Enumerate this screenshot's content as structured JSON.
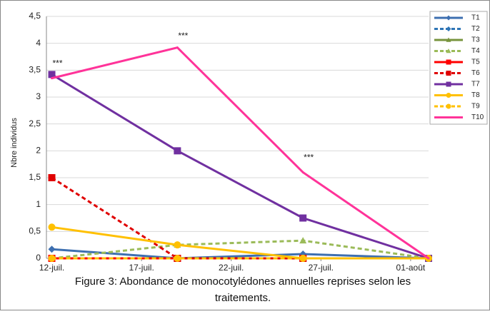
{
  "chart_data": {
    "type": "line",
    "y_label": "Nbre individus",
    "caption": [
      "Figure 3: Abondance de monocotylédones annuelles reprises  selon les",
      "traitements."
    ],
    "annotations": [
      "***",
      "***",
      "***"
    ],
    "x": [
      12,
      19,
      26,
      33
    ],
    "xlim": [
      11.7,
      33
    ],
    "xticks": [
      {
        "value": 12,
        "label": "12-juil."
      },
      {
        "value": 17,
        "label": "17-juil."
      },
      {
        "value": 22,
        "label": "22-juil."
      },
      {
        "value": 27,
        "label": "27-juil."
      },
      {
        "value": 32,
        "label": "01-août"
      }
    ],
    "ylim": [
      0,
      4.5
    ],
    "yticks": [
      0,
      {
        "value": 0.5,
        "label": "0,5"
      },
      1,
      {
        "value": 1.5,
        "label": "1,5"
      },
      2,
      {
        "value": 2.5,
        "label": "2,5"
      },
      3,
      {
        "value": 3.5,
        "label": "3,5"
      },
      4,
      {
        "value": 4.5,
        "label": "4,5"
      }
    ],
    "grid": true,
    "legend": "right",
    "series": [
      {
        "name": "T1",
        "color": "#3d6fb0",
        "dash": false,
        "marker": "diamond",
        "values": [
          0.17,
          0,
          0.08,
          0
        ]
      },
      {
        "name": "T2",
        "color": "#2e75b6",
        "dash": true,
        "marker": "diamond",
        "values": [
          0,
          0,
          0,
          0
        ]
      },
      {
        "name": "T3",
        "color": "#77933c",
        "dash": false,
        "marker": "triangle",
        "values": [
          0,
          0,
          0,
          0
        ]
      },
      {
        "name": "T4",
        "color": "#9bbb59",
        "dash": true,
        "marker": "triangle",
        "values": [
          0,
          0.25,
          0.33,
          0
        ]
      },
      {
        "name": "T5",
        "color": "#ff0000",
        "dash": false,
        "marker": "square",
        "values": [
          0,
          0,
          0,
          0
        ]
      },
      {
        "name": "T6",
        "color": "#e00000",
        "dash": true,
        "marker": "square",
        "values": [
          1.5,
          0,
          0,
          0
        ]
      },
      {
        "name": "T7",
        "color": "#7030a0",
        "dash": false,
        "marker": "square",
        "values": [
          3.42,
          2.0,
          0.75,
          0
        ]
      },
      {
        "name": "T8",
        "color": "#ffc000",
        "dash": false,
        "marker": "circle",
        "values": [
          0.58,
          0.25,
          0,
          0
        ]
      },
      {
        "name": "T9",
        "color": "#ffc000",
        "dash": true,
        "marker": "circle",
        "values": [
          0,
          0,
          0,
          0
        ]
      },
      {
        "name": "T10",
        "color": "#ff3399",
        "dash": false,
        "marker": "none",
        "values": [
          3.35,
          3.92,
          1.6,
          0
        ]
      }
    ]
  }
}
